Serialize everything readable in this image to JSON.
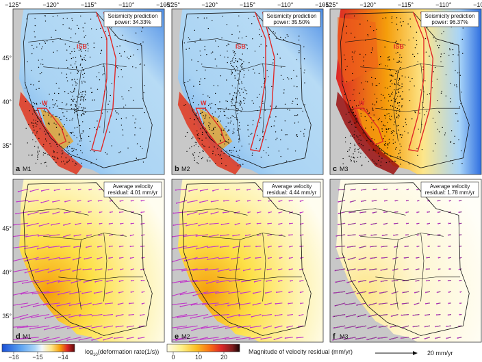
{
  "top_axis_labels": [
    "−125°",
    "−120°",
    "−115°",
    "−110°",
    "−105°"
  ],
  "left_axis_labels": [
    "45°",
    "40°",
    "35°"
  ],
  "panels": [
    {
      "letter": "a",
      "model": "M1",
      "box_line1": "Seismicity prediction",
      "box_line2": "power: 34.33%",
      "kind": "strain",
      "field": "low"
    },
    {
      "letter": "b",
      "model": "M2",
      "box_line1": "Seismicity prediction",
      "box_line2": "power: 35.50%",
      "kind": "strain",
      "field": "low"
    },
    {
      "letter": "c",
      "model": "M3",
      "box_line1": "Seismicity prediction",
      "box_line2": "power: 96.37%",
      "kind": "strain",
      "field": "high"
    },
    {
      "letter": "d",
      "model": "M1",
      "box_line1": "Average velocity",
      "box_line2": "residual: 4.01 mm/yr",
      "kind": "velocity",
      "residual": 4.01
    },
    {
      "letter": "e",
      "model": "M2",
      "box_line1": "Average velocity",
      "box_line2": "residual: 4.44 mm/yr",
      "kind": "velocity",
      "residual": 4.44
    },
    {
      "letter": "f",
      "model": "M3",
      "box_line1": "Average velocity",
      "box_line2": "residual: 1.78 mm/yr",
      "kind": "velocity",
      "residual": 1.78
    }
  ],
  "region_labels": {
    "isb": "ISB",
    "w": "W"
  },
  "colorbar_strain": {
    "ticks": [
      "−16",
      "−15",
      "−14"
    ],
    "label": "log10(deformation rate(1/s))",
    "label_main": "log",
    "label_sub": "10",
    "label_rest": "(deformation rate(1/s))",
    "colors": [
      "#1a4fd6",
      "#5aa0f0",
      "#a8d4f8",
      "#f4f8fb",
      "#fde68a",
      "#f59e0b",
      "#dc2626",
      "#5b0a0a"
    ]
  },
  "colorbar_velocity": {
    "ticks": [
      "0",
      "10",
      "20"
    ],
    "label": "Magnitude of velocity residual (mm/yr)",
    "colors": [
      "#fffbe6",
      "#fef08a",
      "#fbbf24",
      "#f97316",
      "#dc2626",
      "#7f1d1d",
      "#1a0505"
    ]
  },
  "scale_arrow": {
    "label": "20 mm/yr"
  },
  "colors": {
    "ocean": "#c8c8c8",
    "land_strain": "#a9d3f3",
    "fault": "#e02828",
    "vector": "#c03cc8",
    "boundary": "#111111"
  }
}
